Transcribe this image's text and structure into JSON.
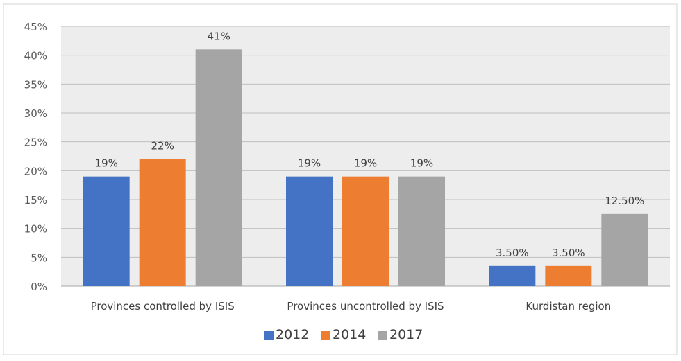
{
  "chart_data": {
    "type": "bar",
    "categories": [
      "Provinces controlled by ISIS",
      "Provinces uncontrolled by ISIS",
      "Kurdistan region"
    ],
    "series": [
      {
        "name": "2012",
        "values": [
          19,
          19,
          3.5
        ],
        "labels": [
          "19%",
          "19%",
          "3.50%"
        ],
        "color": "#4472C4"
      },
      {
        "name": "2014",
        "values": [
          22,
          19,
          3.5
        ],
        "labels": [
          "22%",
          "19%",
          "3.50%"
        ],
        "color": "#ED7D31"
      },
      {
        "name": "2017",
        "values": [
          41,
          19,
          12.5
        ],
        "labels": [
          "41%",
          "19%",
          "12.50%"
        ],
        "color": "#A5A5A5"
      }
    ],
    "ylim": [
      0,
      45
    ],
    "yticks": [
      "0%",
      "5%",
      "10%",
      "15%",
      "20%",
      "25%",
      "30%",
      "35%",
      "40%",
      "45%"
    ],
    "grid": true,
    "legend_position": "bottom",
    "plot_background": "#EDEDED"
  }
}
